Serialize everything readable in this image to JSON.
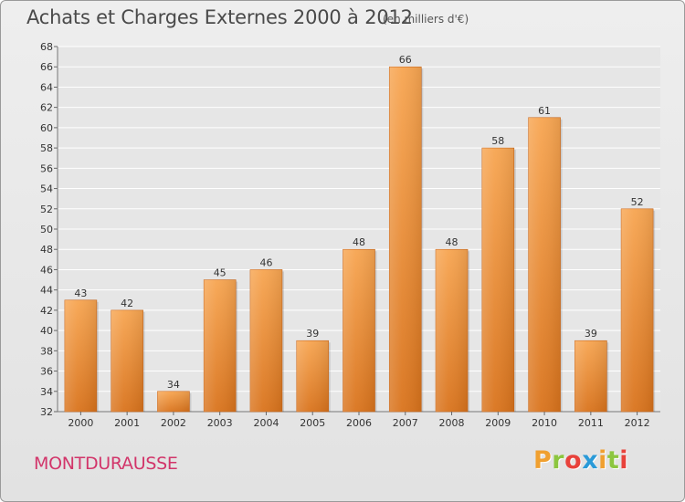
{
  "header": {
    "title": "Achats et Charges Externes 2000 à 2012",
    "subtitle": "(en milliers d'€)"
  },
  "footer": {
    "town": "MONTDURAUSSE",
    "logo": "Proxiti",
    "logo_colors": [
      "#f0a030",
      "#8cc63f",
      "#e8423b",
      "#2a9ad8",
      "#f0a030",
      "#8cc63f",
      "#e8423b"
    ]
  },
  "chart_data": {
    "type": "bar",
    "categories": [
      "2000",
      "2001",
      "2002",
      "2003",
      "2004",
      "2005",
      "2006",
      "2007",
      "2008",
      "2009",
      "2010",
      "2011",
      "2012"
    ],
    "values": [
      43,
      42,
      34,
      45,
      46,
      39,
      48,
      66,
      48,
      58,
      61,
      39,
      52
    ],
    "title": "Achats et Charges Externes 2000 à 2012",
    "ylim": [
      32,
      68
    ],
    "yticks": [
      32,
      34,
      36,
      38,
      40,
      42,
      44,
      46,
      48,
      50,
      52,
      54,
      56,
      58,
      60,
      62,
      64,
      66,
      68
    ],
    "grid": true,
    "bar_color": "#f0913a"
  }
}
